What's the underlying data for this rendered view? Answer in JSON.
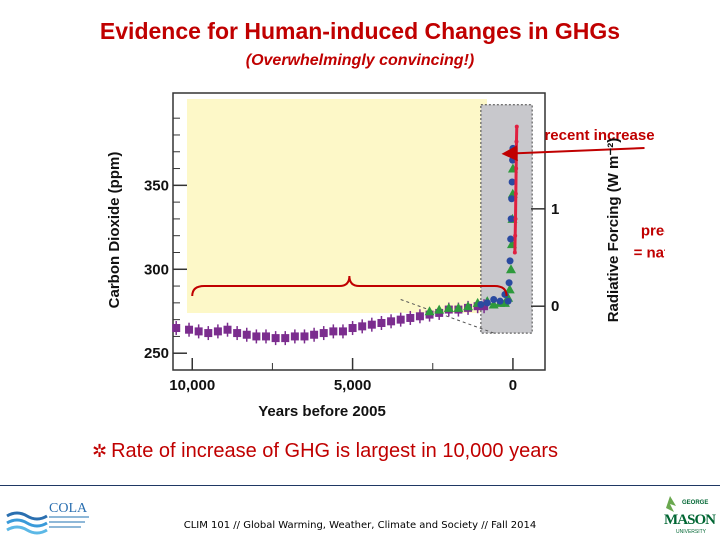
{
  "slide": {
    "title": "Evidence for Human-induced Changes in GHGs",
    "subtitle": "(Overwhelmingly convincing!)",
    "bullet": "Rate of increase of GHG is largest in 10,000 years",
    "footer": "CLIM 101 // Global Warming, Weather, Climate and Society // Fall 2014",
    "logo_left_text": "COLA",
    "logo_right_text": "MASON",
    "logo_right_small": "GEORGE",
    "logo_right_sub": "UNIVERSITY"
  },
  "colors": {
    "title": "#c00000",
    "series_ice_core": "#7b2d8e",
    "series_green": "#2e9a3c",
    "series_blue": "#2a4aa0",
    "series_recent": "#e02040",
    "plot_bg": "#fdf8c8",
    "recent_box": "#c8c8cc"
  },
  "chart_data": {
    "type": "scatter",
    "title": "",
    "xlabel": "Years before 2005",
    "ylabel": "Carbon Dioxide (ppm)",
    "y2label": "Radiative Forcing (W m⁻²)",
    "xlim": [
      10600,
      -1000
    ],
    "ylim": [
      240,
      405
    ],
    "x_ticks": [
      10000,
      5000,
      0
    ],
    "x_tick_labels": [
      "10,000",
      "5,000",
      "0"
    ],
    "y_ticks": [
      250,
      300,
      350
    ],
    "y2_ticks": [
      0,
      1
    ],
    "y2_tick_values_ppm": [
      278,
      336
    ],
    "annotations": [
      {
        "text": "recent increase",
        "x": -80,
        "y": 376,
        "ax": -2700,
        "ay": 377
      },
      {
        "text": "pre-industrial era",
        "ax": -5900,
        "ay": 320
      },
      {
        "text": "= natural variability",
        "ax": -5900,
        "ay": 307
      }
    ],
    "brace": {
      "x_from": 10000,
      "x_to": 200,
      "y": 290
    },
    "recent_region": {
      "x_from": 1000,
      "x_to": -600
    },
    "series": [
      {
        "values": [
          [
            10500,
            265
          ],
          [
            10100,
            264
          ],
          [
            9800,
            263
          ],
          [
            9500,
            262
          ],
          [
            9200,
            263
          ],
          [
            8900,
            264
          ],
          [
            8600,
            262
          ],
          [
            8300,
            261
          ],
          [
            8000,
            260
          ],
          [
            7700,
            260
          ],
          [
            7400,
            259
          ],
          [
            7100,
            259
          ],
          [
            6800,
            260
          ],
          [
            6500,
            260
          ],
          [
            6200,
            261
          ],
          [
            5900,
            262
          ],
          [
            5600,
            263
          ],
          [
            5300,
            263
          ],
          [
            5000,
            265
          ],
          [
            4700,
            266
          ],
          [
            4400,
            267
          ],
          [
            4100,
            268
          ],
          [
            3800,
            269
          ],
          [
            3500,
            270
          ],
          [
            3200,
            271
          ],
          [
            2900,
            272
          ],
          [
            2600,
            273
          ],
          [
            2300,
            274
          ],
          [
            2000,
            276
          ],
          [
            1700,
            276
          ],
          [
            1400,
            277
          ],
          [
            1100,
            278
          ],
          [
            900,
            278
          ]
        ]
      },
      {
        "values": [
          [
            2600,
            275
          ],
          [
            2300,
            276
          ],
          [
            2000,
            277
          ],
          [
            1700,
            277
          ],
          [
            1400,
            278
          ],
          [
            1100,
            280
          ],
          [
            800,
            281
          ],
          [
            600,
            279
          ],
          [
            400,
            280
          ],
          [
            250,
            280
          ],
          [
            150,
            283
          ],
          [
            100,
            288
          ],
          [
            60,
            300
          ],
          [
            30,
            315
          ],
          [
            15,
            330
          ],
          [
            5,
            345
          ],
          [
            0,
            360
          ]
        ]
      },
      {
        "values": [
          [
            1000,
            279
          ],
          [
            800,
            280
          ],
          [
            600,
            282
          ],
          [
            400,
            281
          ],
          [
            250,
            285
          ],
          [
            150,
            281
          ],
          [
            120,
            292
          ],
          [
            90,
            305
          ],
          [
            70,
            318
          ],
          [
            55,
            330
          ],
          [
            40,
            342
          ],
          [
            25,
            352
          ],
          [
            10,
            365
          ],
          [
            0,
            372
          ]
        ]
      },
      {
        "values": [
          [
            -60,
            310
          ],
          [
            -70,
            320
          ],
          [
            -80,
            330
          ],
          [
            -90,
            345
          ],
          [
            -100,
            360
          ],
          [
            -110,
            376
          ],
          [
            -120,
            385
          ]
        ]
      }
    ]
  }
}
